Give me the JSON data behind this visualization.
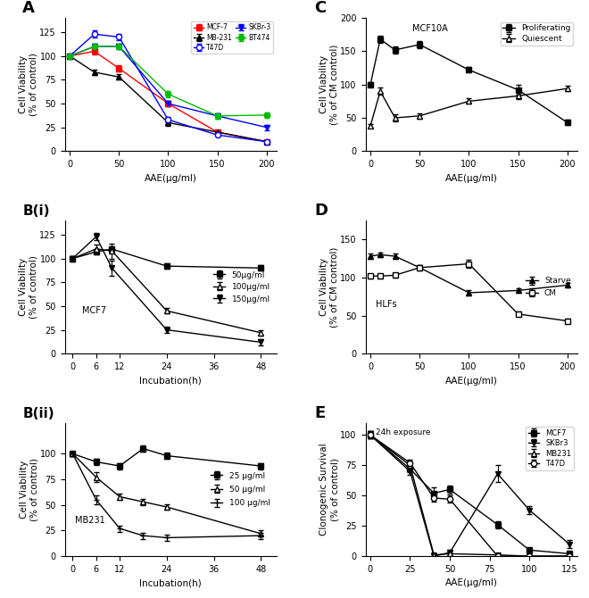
{
  "A": {
    "xlabel": "AAE(μg/ml)",
    "ylabel": "Cell Viability\n(% of control)",
    "x": [
      0,
      25,
      50,
      100,
      150,
      200
    ],
    "MCF7": {
      "y": [
        100,
        105,
        87,
        50,
        20,
        10
      ],
      "err": [
        2,
        3,
        3,
        3,
        2,
        2
      ],
      "color": "red",
      "marker": "s",
      "label": "MCF-7",
      "open": false
    },
    "MB231": {
      "y": [
        100,
        83,
        78,
        30,
        20,
        10
      ],
      "err": [
        2,
        3,
        3,
        3,
        2,
        2
      ],
      "color": "black",
      "marker": "^",
      "label": "MB-231",
      "open": false
    },
    "T47D": {
      "y": [
        100,
        123,
        120,
        33,
        17,
        10
      ],
      "err": [
        2,
        4,
        3,
        3,
        2,
        2
      ],
      "color": "blue",
      "marker": "o",
      "label": "T47D",
      "open": true
    },
    "SKBr3": {
      "y": [
        100,
        110,
        110,
        50,
        37,
        25
      ],
      "err": [
        2,
        3,
        3,
        3,
        3,
        3
      ],
      "color": "blue",
      "marker": "v",
      "label": "SKBr-3",
      "open": false
    },
    "BT474": {
      "y": [
        100,
        110,
        110,
        60,
        37,
        38
      ],
      "err": [
        2,
        3,
        3,
        3,
        3,
        3
      ],
      "color": "#00bb00",
      "marker": "o",
      "label": "BT474",
      "open": false
    },
    "order": [
      "MCF7",
      "MB231",
      "T47D",
      "SKBr3",
      "BT474"
    ],
    "ylim": [
      0,
      140
    ],
    "yticks": [
      0,
      25,
      50,
      75,
      100,
      125
    ]
  },
  "C": {
    "xlabel": "AAE(μg/ml)",
    "ylabel": "Cell Viability\n(% of CM control)",
    "annotation": "MCF10A",
    "x": [
      0,
      10,
      25,
      50,
      100,
      150,
      200
    ],
    "Proliferating": {
      "y": [
        100,
        168,
        152,
        160,
        122,
        92,
        43
      ],
      "err": [
        3,
        5,
        5,
        5,
        4,
        7,
        4
      ],
      "marker": "s",
      "label": "Proliferating",
      "open": false
    },
    "Quiescent": {
      "y": [
        38,
        90,
        50,
        53,
        75,
        83,
        94
      ],
      "err": [
        3,
        5,
        5,
        4,
        4,
        5,
        4
      ],
      "marker": "^",
      "label": "Quiescent",
      "open": true
    },
    "order": [
      "Proliferating",
      "Quiescent"
    ],
    "ylim": [
      0,
      200
    ],
    "yticks": [
      0,
      50,
      100,
      150,
      200
    ]
  },
  "Bi": {
    "xlabel": "Incubation(h)",
    "ylabel": "Cell Viability\n(% of control)",
    "annotation": "MCF7",
    "x": [
      0,
      6,
      10,
      24,
      48
    ],
    "50": {
      "y": [
        100,
        107,
        110,
        92,
        90
      ],
      "err": [
        2,
        3,
        3,
        3,
        3
      ],
      "marker": "s",
      "label": "50μg/ml",
      "open": false
    },
    "100": {
      "y": [
        100,
        110,
        108,
        45,
        22
      ],
      "err": [
        2,
        5,
        8,
        3,
        3
      ],
      "marker": "^",
      "label": "100μg/ml",
      "open": true
    },
    "150": {
      "y": [
        100,
        123,
        90,
        25,
        12
      ],
      "err": [
        2,
        4,
        8,
        3,
        3
      ],
      "marker": "v",
      "label": "150μg/ml",
      "open": false
    },
    "order": [
      "50",
      "100",
      "150"
    ],
    "ylim": [
      0,
      140
    ],
    "yticks": [
      0,
      25,
      50,
      75,
      100,
      125
    ],
    "xticks": [
      0,
      6,
      12,
      24,
      36,
      48
    ],
    "xlim": [
      -2,
      52
    ]
  },
  "Bii": {
    "xlabel": "Incubation(h)",
    "ylabel": "Cell Viability\n(% of control)",
    "annotation": "MB231",
    "x": [
      0,
      6,
      12,
      18,
      24,
      48
    ],
    "25": {
      "y": [
        100,
        92,
        88,
        105,
        98,
        88
      ],
      "err": [
        2,
        3,
        3,
        3,
        3,
        3
      ],
      "marker": "s",
      "label": "25 μg/ml",
      "open": false
    },
    "50": {
      "y": [
        100,
        77,
        58,
        53,
        48,
        22
      ],
      "err": [
        2,
        5,
        3,
        3,
        3,
        3
      ],
      "marker": "^",
      "label": "50 μg/ml",
      "open": true
    },
    "100": {
      "y": [
        100,
        55,
        27,
        20,
        18,
        20
      ],
      "err": [
        2,
        4,
        3,
        3,
        3,
        3
      ],
      "marker": "+",
      "label": "100 μg/ml",
      "open": false
    },
    "order": [
      "25",
      "50",
      "100"
    ],
    "ylim": [
      0,
      130
    ],
    "yticks": [
      0,
      25,
      50,
      75,
      100
    ],
    "xticks": [
      0,
      6,
      12,
      24,
      36,
      48
    ],
    "xlim": [
      -2,
      52
    ]
  },
  "D": {
    "xlabel": "AAE(μg/ml)",
    "ylabel": "Cell Viability\n(% of CM control)",
    "annotation": "HLFs",
    "x": [
      0,
      10,
      25,
      50,
      100,
      150,
      200
    ],
    "Starve": {
      "y": [
        128,
        130,
        128,
        113,
        80,
        83,
        90
      ],
      "err": [
        3,
        3,
        3,
        3,
        3,
        3,
        3
      ],
      "marker": "^",
      "label": "Starve",
      "open": false
    },
    "CM": {
      "y": [
        102,
        102,
        103,
        113,
        118,
        52,
        43
      ],
      "err": [
        3,
        3,
        3,
        3,
        5,
        3,
        3
      ],
      "marker": "s",
      "label": "CM",
      "open": true
    },
    "order": [
      "Starve",
      "CM"
    ],
    "ylim": [
      0,
      175
    ],
    "yticks": [
      0,
      50,
      100,
      150
    ]
  },
  "E": {
    "xlabel": "AAE(μg/ml)",
    "ylabel": "Clonogenic Survival\n(% of control)",
    "annotation": "24h exposure",
    "x": [
      0,
      25,
      40,
      50,
      80,
      100,
      125
    ],
    "MCF7": {
      "y": [
        100,
        72,
        52,
        55,
        26,
        5,
        2
      ],
      "err": [
        3,
        3,
        5,
        3,
        3,
        2,
        2
      ],
      "marker": "s",
      "label": "MCF7",
      "open": false
    },
    "SKBr3": {
      "y": [
        100,
        70,
        0,
        3,
        68,
        38,
        10
      ],
      "err": [
        3,
        3,
        2,
        2,
        7,
        3,
        3
      ],
      "marker": "v",
      "label": "SKBr3",
      "open": false
    },
    "MB231": {
      "y": [
        100,
        75,
        1,
        2,
        1,
        0,
        0
      ],
      "err": [
        3,
        3,
        2,
        2,
        2,
        2,
        2
      ],
      "marker": "^",
      "label": "MB231",
      "open": true
    },
    "T47D": {
      "y": [
        100,
        77,
        48,
        47,
        0,
        0,
        0
      ],
      "err": [
        3,
        3,
        3,
        3,
        2,
        2,
        2
      ],
      "marker": "o",
      "label": "T47D",
      "open": true,
      "circle_open": true
    },
    "order": [
      "MCF7",
      "SKBr3",
      "MB231",
      "T47D"
    ],
    "ylim": [
      0,
      110
    ],
    "yticks": [
      0,
      25,
      50,
      75,
      100
    ],
    "xticks": [
      0,
      25,
      50,
      75,
      100,
      125
    ],
    "xlim": [
      -3,
      130
    ]
  }
}
